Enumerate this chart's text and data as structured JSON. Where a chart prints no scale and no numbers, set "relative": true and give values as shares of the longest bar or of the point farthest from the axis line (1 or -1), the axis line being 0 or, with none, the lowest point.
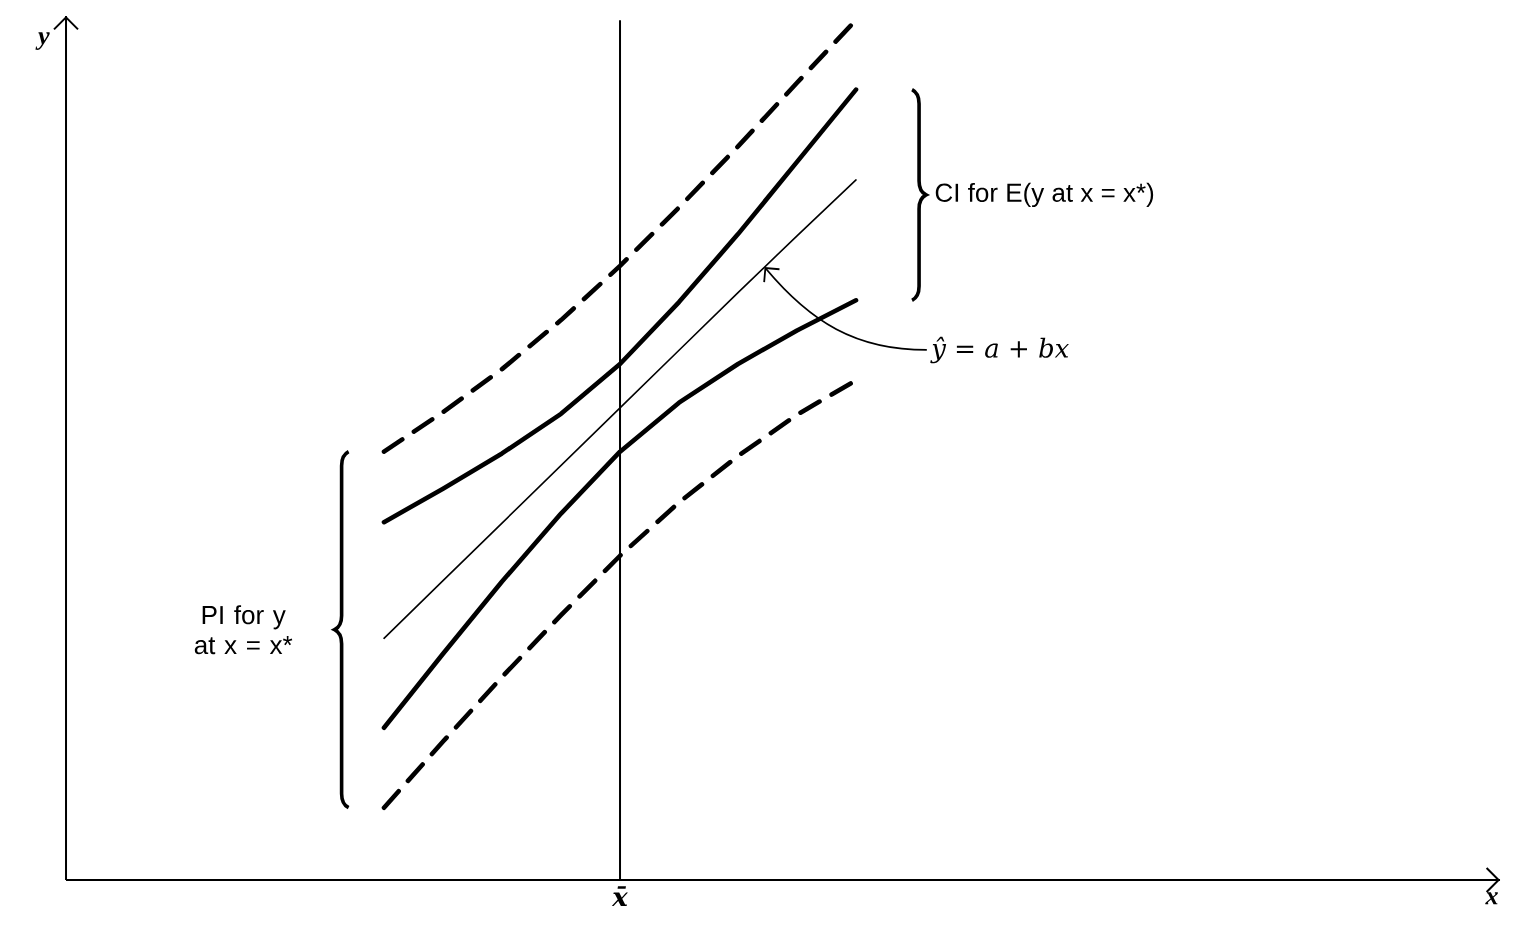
{
  "chart_data": {
    "type": "line",
    "relative": true,
    "marker": "none",
    "categories": [
      null,
      null,
      null,
      null,
      null,
      null,
      null,
      null,
      null
    ],
    "series": [
      {
        "color": "#000000",
        "line_style": "dashed",
        "values": [
          0.498,
          0.544,
          0.594,
          0.651,
          0.714,
          0.782,
          0.853,
          0.927,
          1.0
        ]
      },
      {
        "color": "#000000",
        "line_style": "solid",
        "values": [
          0.416,
          0.455,
          0.496,
          0.542,
          0.6,
          0.672,
          0.751,
          0.835,
          0.919
        ]
      },
      {
        "color": "#000000",
        "line_style": "solid",
        "values": [
          0.281,
          0.348,
          0.415,
          0.482,
          0.549,
          0.616,
          0.683,
          0.749,
          0.814
        ]
      },
      {
        "color": "#000000",
        "line_style": "solid",
        "values": [
          0.177,
          0.263,
          0.347,
          0.426,
          0.498,
          0.555,
          0.6,
          0.639,
          0.674
        ]
      },
      {
        "color": "#000000",
        "line_style": "dashed",
        "values": [
          0.084,
          0.161,
          0.236,
          0.308,
          0.377,
          0.439,
          0.493,
          0.541,
          0.581
        ]
      }
    ],
    "annotations": [
      "PI for y at x = x*",
      "CI for E(y at x = x*)",
      "ŷ = a + bx",
      "x̄",
      "x",
      "y"
    ]
  }
}
